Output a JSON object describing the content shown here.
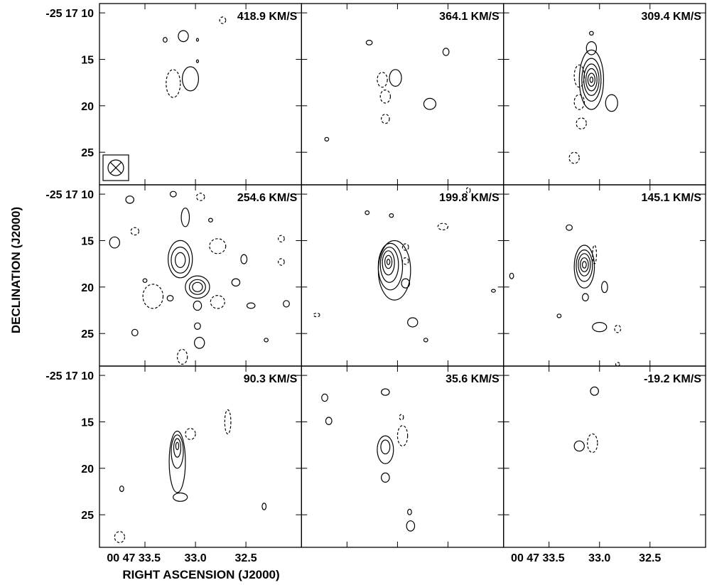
{
  "chart_data": {
    "type": "contour",
    "xlabel": "RIGHT ASCENSION (J2000)",
    "ylabel": "DECLINATION (J2000)",
    "x_ticks": [
      "00 47 33.5",
      "33.0",
      "32.5"
    ],
    "x_tick_values": [
      33.5,
      33.0,
      32.5
    ],
    "y_ticks": [
      "-25 17 10",
      "15",
      "20",
      "25"
    ],
    "y_tick_values": [
      10,
      15,
      20,
      25
    ],
    "x_range": [
      33.95,
      31.95
    ],
    "y_range": [
      9.0,
      28.5
    ],
    "grid": false,
    "beam_symbol": "beam-ellipse-crossed",
    "panels": [
      {
        "label": "418.9 KM/S",
        "contours": [
          {
            "sign": "pos",
            "ra": 33.05,
            "dec": 17.1,
            "rx": 0.08,
            "ry": 1.3
          },
          {
            "sign": "pos",
            "ra": 33.12,
            "dec": 12.5,
            "rx": 0.05,
            "ry": 0.6
          },
          {
            "sign": "pos",
            "ra": 33.3,
            "dec": 12.9,
            "rx": 0.02,
            "ry": 0.25
          },
          {
            "sign": "pos",
            "ra": 32.98,
            "dec": 15.2,
            "rx": 0.01,
            "ry": 0.15
          },
          {
            "sign": "pos",
            "ra": 32.98,
            "dec": 12.9,
            "rx": 0.01,
            "ry": 0.15
          },
          {
            "sign": "neg",
            "ra": 33.22,
            "dec": 17.6,
            "rx": 0.07,
            "ry": 1.5
          },
          {
            "sign": "neg",
            "ra": 32.73,
            "dec": 10.8,
            "rx": 0.03,
            "ry": 0.35
          }
        ]
      },
      {
        "label": "364.1 KM/S",
        "contours": [
          {
            "sign": "pos",
            "ra": 33.02,
            "dec": 17.0,
            "rx": 0.06,
            "ry": 0.9
          },
          {
            "sign": "pos",
            "ra": 32.68,
            "dec": 19.8,
            "rx": 0.06,
            "ry": 0.6
          },
          {
            "sign": "pos",
            "ra": 33.28,
            "dec": 13.2,
            "rx": 0.03,
            "ry": 0.25
          },
          {
            "sign": "pos",
            "ra": 32.52,
            "dec": 14.2,
            "rx": 0.03,
            "ry": 0.4
          },
          {
            "sign": "pos",
            "ra": 33.7,
            "dec": 23.6,
            "rx": 0.02,
            "ry": 0.2
          },
          {
            "sign": "neg",
            "ra": 33.15,
            "dec": 17.2,
            "rx": 0.05,
            "ry": 0.8
          },
          {
            "sign": "neg",
            "ra": 33.12,
            "dec": 19.0,
            "rx": 0.05,
            "ry": 0.7
          },
          {
            "sign": "neg",
            "ra": 33.12,
            "dec": 21.4,
            "rx": 0.04,
            "ry": 0.5
          }
        ]
      },
      {
        "label": "309.4 KM/S",
        "contours": [
          {
            "sign": "pos",
            "ra": 33.08,
            "dec": 17.2,
            "rx": 0.12,
            "ry": 3.2
          },
          {
            "sign": "pos",
            "ra": 33.08,
            "dec": 17.2,
            "rx": 0.095,
            "ry": 2.3
          },
          {
            "sign": "pos",
            "ra": 33.08,
            "dec": 17.2,
            "rx": 0.075,
            "ry": 1.7
          },
          {
            "sign": "pos",
            "ra": 33.08,
            "dec": 17.2,
            "rx": 0.055,
            "ry": 1.2
          },
          {
            "sign": "pos",
            "ra": 33.08,
            "dec": 17.2,
            "rx": 0.035,
            "ry": 0.7
          },
          {
            "sign": "pos",
            "ra": 33.08,
            "dec": 17.2,
            "rx": 0.015,
            "ry": 0.3
          },
          {
            "sign": "pos",
            "ra": 33.08,
            "dec": 13.8,
            "rx": 0.05,
            "ry": 0.7
          },
          {
            "sign": "pos",
            "ra": 32.88,
            "dec": 19.7,
            "rx": 0.06,
            "ry": 0.9
          },
          {
            "sign": "pos",
            "ra": 33.08,
            "dec": 12.2,
            "rx": 0.02,
            "ry": 0.2
          },
          {
            "sign": "neg",
            "ra": 33.2,
            "dec": 16.8,
            "rx": 0.05,
            "ry": 1.2
          },
          {
            "sign": "neg",
            "ra": 33.2,
            "dec": 19.6,
            "rx": 0.05,
            "ry": 0.8
          },
          {
            "sign": "neg",
            "ra": 33.18,
            "dec": 21.9,
            "rx": 0.05,
            "ry": 0.6
          },
          {
            "sign": "neg",
            "ra": 33.25,
            "dec": 25.6,
            "rx": 0.05,
            "ry": 0.6
          }
        ]
      },
      {
        "label": "254.6 KM/S",
        "contours": [
          {
            "sign": "pos",
            "ra": 33.15,
            "dec": 17.0,
            "rx": 0.12,
            "ry": 2.0
          },
          {
            "sign": "pos",
            "ra": 33.15,
            "dec": 17.1,
            "rx": 0.09,
            "ry": 1.4
          },
          {
            "sign": "pos",
            "ra": 33.15,
            "dec": 17.1,
            "rx": 0.05,
            "ry": 0.8
          },
          {
            "sign": "pos",
            "ra": 32.98,
            "dec": 20.0,
            "rx": 0.12,
            "ry": 1.2
          },
          {
            "sign": "pos",
            "ra": 32.98,
            "dec": 20.0,
            "rx": 0.08,
            "ry": 0.8
          },
          {
            "sign": "pos",
            "ra": 32.98,
            "dec": 20.0,
            "rx": 0.05,
            "ry": 0.5
          },
          {
            "sign": "pos",
            "ra": 32.98,
            "dec": 22.0,
            "rx": 0.04,
            "ry": 0.5
          },
          {
            "sign": "pos",
            "ra": 32.98,
            "dec": 24.2,
            "rx": 0.03,
            "ry": 0.35
          },
          {
            "sign": "pos",
            "ra": 32.96,
            "dec": 26.0,
            "rx": 0.05,
            "ry": 0.6
          },
          {
            "sign": "pos",
            "ra": 33.1,
            "dec": 12.5,
            "rx": 0.04,
            "ry": 1.0
          },
          {
            "sign": "pos",
            "ra": 33.65,
            "dec": 10.6,
            "rx": 0.04,
            "ry": 0.4
          },
          {
            "sign": "pos",
            "ra": 33.22,
            "dec": 10.0,
            "rx": 0.03,
            "ry": 0.3
          },
          {
            "sign": "pos",
            "ra": 33.8,
            "dec": 15.2,
            "rx": 0.05,
            "ry": 0.6
          },
          {
            "sign": "pos",
            "ra": 33.5,
            "dec": 19.3,
            "rx": 0.02,
            "ry": 0.2
          },
          {
            "sign": "pos",
            "ra": 33.25,
            "dec": 21.2,
            "rx": 0.03,
            "ry": 0.3
          },
          {
            "sign": "pos",
            "ra": 32.6,
            "dec": 19.5,
            "rx": 0.04,
            "ry": 0.4
          },
          {
            "sign": "pos",
            "ra": 32.52,
            "dec": 17.0,
            "rx": 0.03,
            "ry": 0.5
          },
          {
            "sign": "pos",
            "ra": 32.45,
            "dec": 22.0,
            "rx": 0.04,
            "ry": 0.3
          },
          {
            "sign": "pos",
            "ra": 32.1,
            "dec": 21.8,
            "rx": 0.03,
            "ry": 0.35
          },
          {
            "sign": "pos",
            "ra": 33.6,
            "dec": 24.9,
            "rx": 0.03,
            "ry": 0.35
          },
          {
            "sign": "pos",
            "ra": 32.85,
            "dec": 12.8,
            "rx": 0.02,
            "ry": 0.2
          },
          {
            "sign": "pos",
            "ra": 32.3,
            "dec": 25.7,
            "rx": 0.02,
            "ry": 0.2
          },
          {
            "sign": "neg",
            "ra": 32.78,
            "dec": 15.6,
            "rx": 0.08,
            "ry": 0.8
          },
          {
            "sign": "neg",
            "ra": 32.78,
            "dec": 21.6,
            "rx": 0.07,
            "ry": 0.7
          },
          {
            "sign": "neg",
            "ra": 33.42,
            "dec": 21.0,
            "rx": 0.1,
            "ry": 1.3
          },
          {
            "sign": "neg",
            "ra": 32.95,
            "dec": 10.3,
            "rx": 0.04,
            "ry": 0.4
          },
          {
            "sign": "neg",
            "ra": 33.6,
            "dec": 14.0,
            "rx": 0.04,
            "ry": 0.4
          },
          {
            "sign": "neg",
            "ra": 32.15,
            "dec": 14.8,
            "rx": 0.03,
            "ry": 0.35
          },
          {
            "sign": "neg",
            "ra": 32.15,
            "dec": 17.3,
            "rx": 0.03,
            "ry": 0.35
          },
          {
            "sign": "neg",
            "ra": 33.13,
            "dec": 27.5,
            "rx": 0.05,
            "ry": 0.8
          }
        ]
      },
      {
        "label": "199.8 KM/S",
        "contours": [
          {
            "sign": "pos",
            "ra": 33.03,
            "dec": 18.2,
            "rx": 0.16,
            "ry": 3.2
          },
          {
            "sign": "pos",
            "ra": 33.07,
            "dec": 17.8,
            "rx": 0.12,
            "ry": 2.5
          },
          {
            "sign": "pos",
            "ra": 33.08,
            "dec": 17.6,
            "rx": 0.09,
            "ry": 1.9
          },
          {
            "sign": "pos",
            "ra": 33.09,
            "dec": 17.4,
            "rx": 0.06,
            "ry": 1.3
          },
          {
            "sign": "pos",
            "ra": 33.09,
            "dec": 17.3,
            "rx": 0.035,
            "ry": 0.7
          },
          {
            "sign": "pos",
            "ra": 33.09,
            "dec": 17.3,
            "rx": 0.015,
            "ry": 0.3
          },
          {
            "sign": "pos",
            "ra": 32.92,
            "dec": 19.6,
            "rx": 0.04,
            "ry": 0.5
          },
          {
            "sign": "pos",
            "ra": 32.85,
            "dec": 23.8,
            "rx": 0.05,
            "ry": 0.5
          },
          {
            "sign": "pos",
            "ra": 32.72,
            "dec": 25.7,
            "rx": 0.02,
            "ry": 0.2
          },
          {
            "sign": "pos",
            "ra": 33.3,
            "dec": 12.0,
            "rx": 0.02,
            "ry": 0.2
          },
          {
            "sign": "pos",
            "ra": 33.06,
            "dec": 12.3,
            "rx": 0.02,
            "ry": 0.2
          },
          {
            "sign": "pos",
            "ra": 32.05,
            "dec": 20.4,
            "rx": 0.02,
            "ry": 0.15
          },
          {
            "sign": "neg",
            "ra": 32.55,
            "dec": 13.5,
            "rx": 0.05,
            "ry": 0.35
          },
          {
            "sign": "neg",
            "ra": 32.92,
            "dec": 15.7,
            "rx": 0.03,
            "ry": 0.35
          },
          {
            "sign": "neg",
            "ra": 32.92,
            "dec": 17.2,
            "rx": 0.03,
            "ry": 0.35
          },
          {
            "sign": "neg",
            "ra": 33.8,
            "dec": 23.0,
            "rx": 0.03,
            "ry": 0.2
          },
          {
            "sign": "neg",
            "ra": 32.3,
            "dec": 9.6,
            "rx": 0.02,
            "ry": 0.3
          }
        ]
      },
      {
        "label": "145.1 KM/S",
        "contours": [
          {
            "sign": "pos",
            "ra": 33.15,
            "dec": 17.8,
            "rx": 0.1,
            "ry": 2.3
          },
          {
            "sign": "pos",
            "ra": 33.15,
            "dec": 17.7,
            "rx": 0.08,
            "ry": 1.7
          },
          {
            "sign": "pos",
            "ra": 33.15,
            "dec": 17.6,
            "rx": 0.06,
            "ry": 1.2
          },
          {
            "sign": "pos",
            "ra": 33.15,
            "dec": 17.6,
            "rx": 0.04,
            "ry": 0.75
          },
          {
            "sign": "pos",
            "ra": 33.15,
            "dec": 17.6,
            "rx": 0.02,
            "ry": 0.35
          },
          {
            "sign": "pos",
            "ra": 33.14,
            "dec": 21.1,
            "rx": 0.03,
            "ry": 0.4
          },
          {
            "sign": "pos",
            "ra": 32.95,
            "dec": 20.0,
            "rx": 0.03,
            "ry": 0.6
          },
          {
            "sign": "pos",
            "ra": 33.0,
            "dec": 24.3,
            "rx": 0.07,
            "ry": 0.5
          },
          {
            "sign": "pos",
            "ra": 33.3,
            "dec": 13.6,
            "rx": 0.03,
            "ry": 0.3
          },
          {
            "sign": "pos",
            "ra": 33.87,
            "dec": 18.8,
            "rx": 0.02,
            "ry": 0.3
          },
          {
            "sign": "pos",
            "ra": 33.4,
            "dec": 23.1,
            "rx": 0.02,
            "ry": 0.2
          },
          {
            "sign": "neg",
            "ra": 33.05,
            "dec": 16.5,
            "rx": 0.02,
            "ry": 1.0
          },
          {
            "sign": "neg",
            "ra": 32.82,
            "dec": 24.5,
            "rx": 0.03,
            "ry": 0.4
          },
          {
            "sign": "neg",
            "ra": 32.82,
            "dec": 28.3,
            "rx": 0.02,
            "ry": 0.2
          }
        ]
      },
      {
        "label": "90.3 KM/S",
        "contours": [
          {
            "sign": "pos",
            "ra": 33.18,
            "dec": 19.3,
            "rx": 0.08,
            "ry": 3.3
          },
          {
            "sign": "pos",
            "ra": 33.18,
            "dec": 18.2,
            "rx": 0.06,
            "ry": 1.8
          },
          {
            "sign": "pos",
            "ra": 33.18,
            "dec": 17.8,
            "rx": 0.035,
            "ry": 1.0
          },
          {
            "sign": "pos",
            "ra": 33.18,
            "dec": 17.6,
            "rx": 0.015,
            "ry": 0.4
          },
          {
            "sign": "pos",
            "ra": 33.15,
            "dec": 23.1,
            "rx": 0.07,
            "ry": 0.45
          },
          {
            "sign": "pos",
            "ra": 33.73,
            "dec": 22.2,
            "rx": 0.02,
            "ry": 0.3
          },
          {
            "sign": "pos",
            "ra": 32.32,
            "dec": 24.1,
            "rx": 0.02,
            "ry": 0.35
          },
          {
            "sign": "neg",
            "ra": 33.05,
            "dec": 16.3,
            "rx": 0.05,
            "ry": 0.6
          },
          {
            "sign": "neg",
            "ra": 32.68,
            "dec": 15.0,
            "rx": 0.03,
            "ry": 1.3
          },
          {
            "sign": "neg",
            "ra": 33.75,
            "dec": 27.4,
            "rx": 0.05,
            "ry": 0.6
          }
        ]
      },
      {
        "label": "35.6 KM/S",
        "contours": [
          {
            "sign": "pos",
            "ra": 33.12,
            "dec": 18.0,
            "rx": 0.08,
            "ry": 1.5
          },
          {
            "sign": "pos",
            "ra": 33.12,
            "dec": 17.7,
            "rx": 0.045,
            "ry": 0.75
          },
          {
            "sign": "pos",
            "ra": 33.12,
            "dec": 21.0,
            "rx": 0.04,
            "ry": 0.5
          },
          {
            "sign": "pos",
            "ra": 33.12,
            "dec": 11.8,
            "rx": 0.04,
            "ry": 0.35
          },
          {
            "sign": "pos",
            "ra": 33.72,
            "dec": 12.4,
            "rx": 0.03,
            "ry": 0.4
          },
          {
            "sign": "pos",
            "ra": 33.68,
            "dec": 14.9,
            "rx": 0.03,
            "ry": 0.4
          },
          {
            "sign": "pos",
            "ra": 32.88,
            "dec": 24.7,
            "rx": 0.02,
            "ry": 0.3
          },
          {
            "sign": "pos",
            "ra": 32.87,
            "dec": 26.2,
            "rx": 0.04,
            "ry": 0.55
          },
          {
            "sign": "neg",
            "ra": 32.95,
            "dec": 16.5,
            "rx": 0.05,
            "ry": 1.1
          },
          {
            "sign": "neg",
            "ra": 32.96,
            "dec": 14.5,
            "rx": 0.02,
            "ry": 0.3
          }
        ]
      },
      {
        "label": "-19.2 KM/S",
        "contours": [
          {
            "sign": "pos",
            "ra": 33.05,
            "dec": 11.7,
            "rx": 0.04,
            "ry": 0.45
          },
          {
            "sign": "pos",
            "ra": 33.2,
            "dec": 17.6,
            "rx": 0.05,
            "ry": 0.55
          },
          {
            "sign": "neg",
            "ra": 33.07,
            "dec": 17.3,
            "rx": 0.05,
            "ry": 1.0
          }
        ]
      }
    ]
  }
}
